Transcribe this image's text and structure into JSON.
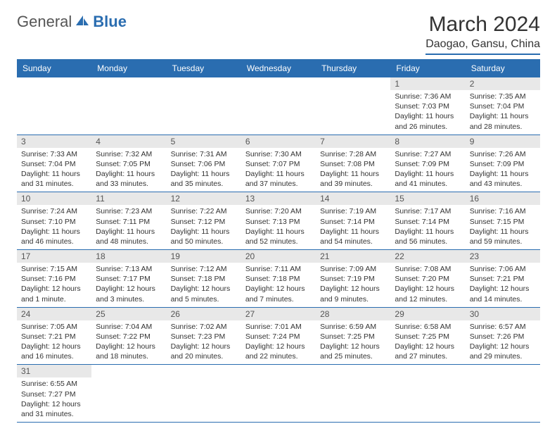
{
  "brand": {
    "part1": "General",
    "part2": "Blue"
  },
  "title": "March 2024",
  "location": "Daogao, Gansu, China",
  "colors": {
    "accent": "#2a6db0",
    "header_bg": "#2a6db0",
    "header_text": "#ffffff",
    "daynum_bg": "#e8e8e8",
    "text": "#333333",
    "background": "#ffffff"
  },
  "weekdays": [
    "Sunday",
    "Monday",
    "Tuesday",
    "Wednesday",
    "Thursday",
    "Friday",
    "Saturday"
  ],
  "weeks": [
    [
      null,
      null,
      null,
      null,
      null,
      {
        "n": "1",
        "sr": "7:36 AM",
        "ss": "7:03 PM",
        "dl": "11 hours and 26 minutes."
      },
      {
        "n": "2",
        "sr": "7:35 AM",
        "ss": "7:04 PM",
        "dl": "11 hours and 28 minutes."
      }
    ],
    [
      {
        "n": "3",
        "sr": "7:33 AM",
        "ss": "7:04 PM",
        "dl": "11 hours and 31 minutes."
      },
      {
        "n": "4",
        "sr": "7:32 AM",
        "ss": "7:05 PM",
        "dl": "11 hours and 33 minutes."
      },
      {
        "n": "5",
        "sr": "7:31 AM",
        "ss": "7:06 PM",
        "dl": "11 hours and 35 minutes."
      },
      {
        "n": "6",
        "sr": "7:30 AM",
        "ss": "7:07 PM",
        "dl": "11 hours and 37 minutes."
      },
      {
        "n": "7",
        "sr": "7:28 AM",
        "ss": "7:08 PM",
        "dl": "11 hours and 39 minutes."
      },
      {
        "n": "8",
        "sr": "7:27 AM",
        "ss": "7:09 PM",
        "dl": "11 hours and 41 minutes."
      },
      {
        "n": "9",
        "sr": "7:26 AM",
        "ss": "7:09 PM",
        "dl": "11 hours and 43 minutes."
      }
    ],
    [
      {
        "n": "10",
        "sr": "7:24 AM",
        "ss": "7:10 PM",
        "dl": "11 hours and 46 minutes."
      },
      {
        "n": "11",
        "sr": "7:23 AM",
        "ss": "7:11 PM",
        "dl": "11 hours and 48 minutes."
      },
      {
        "n": "12",
        "sr": "7:22 AM",
        "ss": "7:12 PM",
        "dl": "11 hours and 50 minutes."
      },
      {
        "n": "13",
        "sr": "7:20 AM",
        "ss": "7:13 PM",
        "dl": "11 hours and 52 minutes."
      },
      {
        "n": "14",
        "sr": "7:19 AM",
        "ss": "7:14 PM",
        "dl": "11 hours and 54 minutes."
      },
      {
        "n": "15",
        "sr": "7:17 AM",
        "ss": "7:14 PM",
        "dl": "11 hours and 56 minutes."
      },
      {
        "n": "16",
        "sr": "7:16 AM",
        "ss": "7:15 PM",
        "dl": "11 hours and 59 minutes."
      }
    ],
    [
      {
        "n": "17",
        "sr": "7:15 AM",
        "ss": "7:16 PM",
        "dl": "12 hours and 1 minute."
      },
      {
        "n": "18",
        "sr": "7:13 AM",
        "ss": "7:17 PM",
        "dl": "12 hours and 3 minutes."
      },
      {
        "n": "19",
        "sr": "7:12 AM",
        "ss": "7:18 PM",
        "dl": "12 hours and 5 minutes."
      },
      {
        "n": "20",
        "sr": "7:11 AM",
        "ss": "7:18 PM",
        "dl": "12 hours and 7 minutes."
      },
      {
        "n": "21",
        "sr": "7:09 AM",
        "ss": "7:19 PM",
        "dl": "12 hours and 9 minutes."
      },
      {
        "n": "22",
        "sr": "7:08 AM",
        "ss": "7:20 PM",
        "dl": "12 hours and 12 minutes."
      },
      {
        "n": "23",
        "sr": "7:06 AM",
        "ss": "7:21 PM",
        "dl": "12 hours and 14 minutes."
      }
    ],
    [
      {
        "n": "24",
        "sr": "7:05 AM",
        "ss": "7:21 PM",
        "dl": "12 hours and 16 minutes."
      },
      {
        "n": "25",
        "sr": "7:04 AM",
        "ss": "7:22 PM",
        "dl": "12 hours and 18 minutes."
      },
      {
        "n": "26",
        "sr": "7:02 AM",
        "ss": "7:23 PM",
        "dl": "12 hours and 20 minutes."
      },
      {
        "n": "27",
        "sr": "7:01 AM",
        "ss": "7:24 PM",
        "dl": "12 hours and 22 minutes."
      },
      {
        "n": "28",
        "sr": "6:59 AM",
        "ss": "7:25 PM",
        "dl": "12 hours and 25 minutes."
      },
      {
        "n": "29",
        "sr": "6:58 AM",
        "ss": "7:25 PM",
        "dl": "12 hours and 27 minutes."
      },
      {
        "n": "30",
        "sr": "6:57 AM",
        "ss": "7:26 PM",
        "dl": "12 hours and 29 minutes."
      }
    ],
    [
      {
        "n": "31",
        "sr": "6:55 AM",
        "ss": "7:27 PM",
        "dl": "12 hours and 31 minutes."
      },
      null,
      null,
      null,
      null,
      null,
      null
    ]
  ],
  "labels": {
    "sunrise": "Sunrise:",
    "sunset": "Sunset:",
    "daylight": "Daylight:"
  }
}
